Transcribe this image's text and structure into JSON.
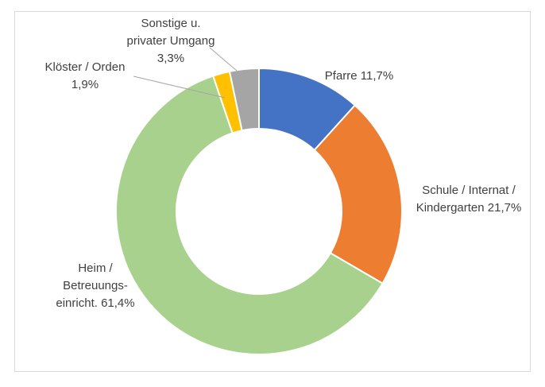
{
  "chart_data": {
    "type": "pie",
    "donut": true,
    "start_angle": "12 o'clock, clockwise",
    "categories": [
      "Pfarre",
      "Schule / Internat / Kindergarten",
      "Heim / Betreuungs-einricht.",
      "Klöster / Orden",
      "Sonstige u. privater Umgang"
    ],
    "values": [
      11.7,
      21.7,
      61.4,
      1.9,
      3.3
    ],
    "colors": [
      "#4472C4",
      "#ED7D31",
      "#A9D18E",
      "#FFC000",
      "#A5A5A5"
    ],
    "labels": {
      "pfarre": [
        "Pfarre 11,7%"
      ],
      "schule": [
        "Schule / Internat /",
        "Kindergarten 21,7%"
      ],
      "heim": [
        "Heim /",
        "Betreuungs-",
        "einricht. 61,4%"
      ],
      "kloester": [
        "Klöster / Orden",
        "1,9%"
      ],
      "sonstige": [
        "Sonstige u.",
        "privater Umgang",
        "3,3%"
      ]
    },
    "legend": "none"
  }
}
